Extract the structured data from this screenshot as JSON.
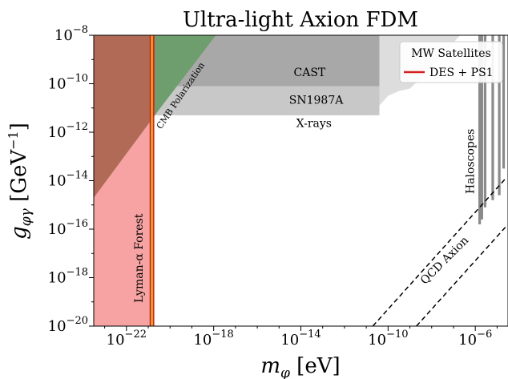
{
  "chart_data": {
    "type": "area",
    "title": "Ultra-light Axion FDM",
    "xlabel_base": "m",
    "xlabel_sub": "φ",
    "xlabel_unit": " [eV]",
    "ylabel_base": "g",
    "ylabel_sub": "φγ",
    "ylabel_unit_pre": " [GeV",
    "ylabel_unit_exp": "−1",
    "ylabel_unit_post": "]",
    "x_log_range": [
      -23.5,
      -4.5
    ],
    "y_log_range": [
      -20,
      -8
    ],
    "x_ticks": [
      {
        "exp": -22,
        "label": "−22"
      },
      {
        "exp": -18,
        "label": "−18"
      },
      {
        "exp": -14,
        "label": "−14"
      },
      {
        "exp": -10,
        "label": "−10"
      },
      {
        "exp": -6,
        "label": "−6"
      }
    ],
    "y_ticks": [
      {
        "exp": -8,
        "label": "−8"
      },
      {
        "exp": -10,
        "label": "−10"
      },
      {
        "exp": -12,
        "label": "−12"
      },
      {
        "exp": -14,
        "label": "−14"
      },
      {
        "exp": -16,
        "label": "−16"
      },
      {
        "exp": -18,
        "label": "−18"
      },
      {
        "exp": -20,
        "label": "−20"
      }
    ],
    "regions": [
      {
        "label": "Lyman-α Forest",
        "color": "#f7a3a3",
        "polygon": [
          [
            -23.5,
            -20
          ],
          [
            -20.8,
            -20
          ],
          [
            -20.8,
            -8
          ],
          [
            -23.5,
            -8
          ]
        ]
      },
      {
        "label": "X-rays",
        "color": "#dddddd",
        "polygon": [
          [
            -23.5,
            -11.3
          ],
          [
            -10.8,
            -11.3
          ],
          [
            -10.4,
            -10.9
          ],
          [
            -10.0,
            -10.5
          ],
          [
            -9.5,
            -10.3
          ],
          [
            -9.0,
            -10.2
          ],
          [
            -8.3,
            -9.6
          ],
          [
            -7.6,
            -8.9
          ],
          [
            -7.0,
            -8.3
          ],
          [
            -6.7,
            -8
          ],
          [
            -23.5,
            -8
          ]
        ]
      },
      {
        "label": "SN1987A",
        "color": "#c8c8c8",
        "polygon": [
          [
            -23.5,
            -11.3
          ],
          [
            -10.4,
            -11.3
          ],
          [
            -10.4,
            -8
          ],
          [
            -23.5,
            -8
          ]
        ]
      },
      {
        "label": "CAST",
        "color": "#a8a8a8",
        "polygon": [
          [
            -23.5,
            -10.1
          ],
          [
            -10.4,
            -10.1
          ],
          [
            -10.4,
            -8
          ],
          [
            -23.5,
            -8
          ]
        ]
      },
      {
        "label": "CMB Polarization",
        "color": "#6e9e6e",
        "polygon": [
          [
            -23.5,
            -14.7
          ],
          [
            -20.7,
            -11.3
          ],
          [
            -17.9,
            -8
          ],
          [
            -23.5,
            -8
          ]
        ]
      },
      {
        "label": "",
        "color": "#b06a56",
        "polygon": [
          [
            -23.5,
            -14.7
          ],
          [
            -20.7,
            -11.3
          ],
          [
            -20.7,
            -8
          ],
          [
            -23.5,
            -8
          ]
        ]
      }
    ],
    "haloscopes": [
      {
        "x": -5.8,
        "ymin": -15.8
      },
      {
        "x": -5.7,
        "ymin": -15.6
      },
      {
        "x": -5.55,
        "ymin": -15.1
      },
      {
        "x": -5.2,
        "ymin": -14.8
      },
      {
        "x": -4.9,
        "ymin": -14.6
      },
      {
        "x": -4.7,
        "ymin": -13.5
      }
    ],
    "qcd_lines": [
      {
        "x0": -10.7,
        "y0": -20,
        "x1": -4.6,
        "y1": -13.9
      },
      {
        "x0": -8.7,
        "y0": -20,
        "x1": -4.6,
        "y1": -15.9
      }
    ],
    "des_lines": [
      {
        "x": -20.9,
        "color": "#d62020"
      },
      {
        "x": -20.76,
        "color": "#d62020"
      },
      {
        "x": -20.83,
        "color": "#d6d020"
      }
    ],
    "labels": [
      {
        "text": "CAST",
        "x": -13.6,
        "y": -9.55,
        "rot": 0
      },
      {
        "text": "SN1987A",
        "x": -13.3,
        "y": -10.7,
        "rot": 0
      },
      {
        "text": "X-rays",
        "x": -13.4,
        "y": -11.65,
        "rot": 0
      },
      {
        "text": "CMB Polarization",
        "x": -19.5,
        "y": -10.5,
        "rot": -56
      },
      {
        "text": "Lyman-α Forest",
        "x": -21.4,
        "y": -17.2,
        "rot": -90
      },
      {
        "text": "Haloscopes",
        "x": -6.2,
        "y": -13.2,
        "rot": -90
      },
      {
        "text": "QCD Axion",
        "x": -7.4,
        "y": -17.3,
        "rot": -45
      }
    ],
    "legend": {
      "placement": "top-right",
      "title": "MW Satellites",
      "entries": [
        {
          "label": "DES + PS1",
          "color": "#d62020"
        }
      ]
    }
  }
}
